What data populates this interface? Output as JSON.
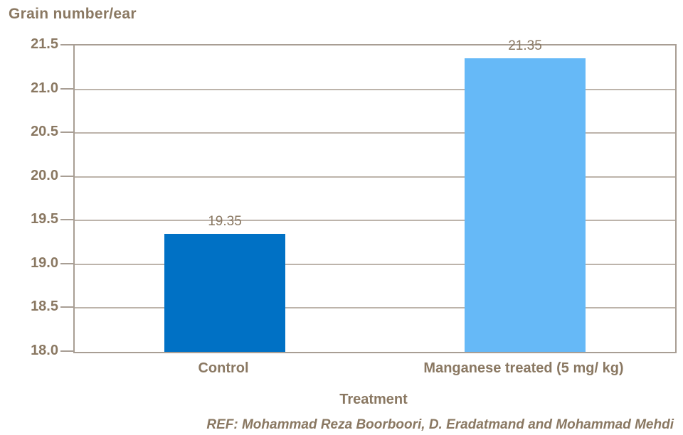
{
  "chart_data": {
    "type": "bar",
    "title": "Grain number/ear",
    "xlabel": "Treatment",
    "ylabel": "",
    "categories": [
      "Control",
      "Manganese treated (5 mg/ kg)"
    ],
    "values": [
      19.35,
      21.35
    ],
    "data_labels": [
      "19.35",
      "21.35"
    ],
    "bar_colors": [
      "#0071c5",
      "#66b9f7"
    ],
    "ylim": [
      18.0,
      21.5
    ],
    "ytick_step": 0.5,
    "yticks_top_to_bottom": [
      "21.5",
      "21.0",
      "20.5",
      "20.0",
      "19.5",
      "19.0",
      "18.5",
      "18.0"
    ],
    "grid": true,
    "legend_position": "none"
  },
  "footer": {
    "ref": "REF: Mohammad Reza Boorboori, D. Eradatmand and Mohammad Mehdi"
  },
  "colors": {
    "text_brown": "#8a7862",
    "axis": "#a89e94",
    "gridline": "#bdb4ab",
    "bar_control": "#0071c5",
    "bar_manganese": "#66b9f7",
    "background": "#ffffff"
  }
}
